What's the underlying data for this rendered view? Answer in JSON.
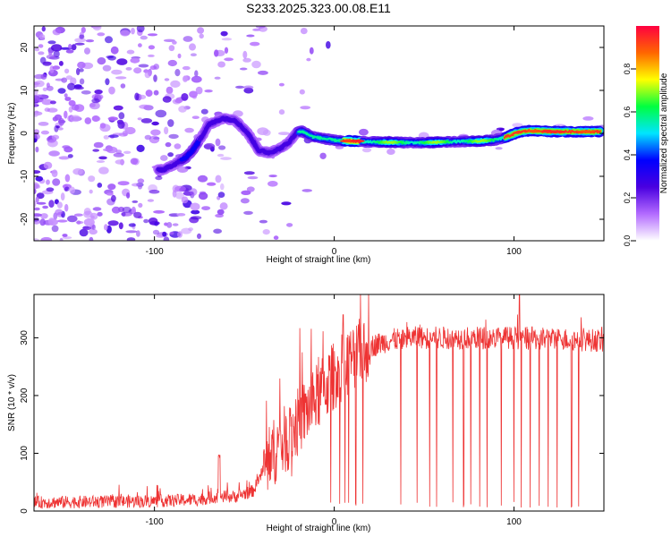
{
  "title": "S233.2025.323.00.08.E11",
  "chart_data": [
    {
      "type": "heatmap",
      "xlabel": "Height of straight line (km)",
      "ylabel": "Frequency (Hz)",
      "xlim": [
        -167,
        150
      ],
      "ylim": [
        -25,
        25
      ],
      "xticks": [
        -100,
        0,
        100
      ],
      "yticks": [
        -20,
        -10,
        0,
        10,
        20
      ],
      "ridge": {
        "x": [
          -95,
          -88,
          -82,
          -78,
          -74,
          -70,
          -62,
          -55,
          -48,
          -42,
          -36,
          -30,
          -25,
          -21,
          -18,
          -12,
          -6,
          0,
          10,
          20,
          35,
          50,
          60,
          80,
          88,
          92,
          97,
          102,
          108,
          115,
          125,
          135,
          148
        ],
        "y": [
          -8.5,
          -7,
          -5.5,
          -3.5,
          -1,
          2,
          3.5,
          3,
          0,
          -4,
          -4.5,
          -3.5,
          -2,
          0.2,
          0.5,
          -0.8,
          -1.2,
          -1.6,
          -1.8,
          -2,
          -2.1,
          -2.2,
          -2,
          -1.8,
          -1.6,
          -1.3,
          -0.6,
          0.2,
          0.6,
          0.5,
          0.4,
          0.4,
          0.4
        ]
      },
      "colorbar": {
        "label": "Normalized spectral amplitude",
        "range": [
          0,
          1
        ],
        "ticks": [
          "0.0",
          "0.2",
          "0.4",
          "0.6",
          "0.8"
        ],
        "colors": [
          "#ffffff",
          "#b36bff",
          "#4a00e0",
          "#0000ff",
          "#00e5ff",
          "#00ff40",
          "#ffff00",
          "#ff6600",
          "#ff0040"
        ]
      }
    },
    {
      "type": "line",
      "xlabel": "Height of straight line (km)",
      "ylabel": "SNR (10 * v/v)",
      "xlim": [
        -167,
        150
      ],
      "ylim": [
        0,
        375
      ],
      "xticks": [
        -100,
        0,
        100
      ],
      "yticks": [
        0,
        100,
        200,
        300
      ],
      "color": "#ee3333",
      "profile": {
        "x": [
          -167,
          -100,
          -75,
          -65,
          -55,
          -45,
          -38,
          -32,
          -25,
          -20,
          -15,
          -10,
          -5,
          0,
          5,
          10,
          15,
          20,
          25,
          30,
          40,
          60,
          100,
          150
        ],
        "mean": [
          15,
          17,
          20,
          25,
          25,
          35,
          80,
          110,
          130,
          155,
          175,
          195,
          215,
          235,
          250,
          265,
          275,
          285,
          290,
          295,
          300,
          300,
          300,
          295
        ]
      },
      "spikes": [
        -2,
        3,
        6,
        8,
        12,
        16,
        37,
        46,
        53,
        57,
        66,
        72,
        76,
        81,
        85,
        93,
        100,
        104,
        109,
        114,
        119,
        124,
        132,
        136
      ]
    }
  ]
}
